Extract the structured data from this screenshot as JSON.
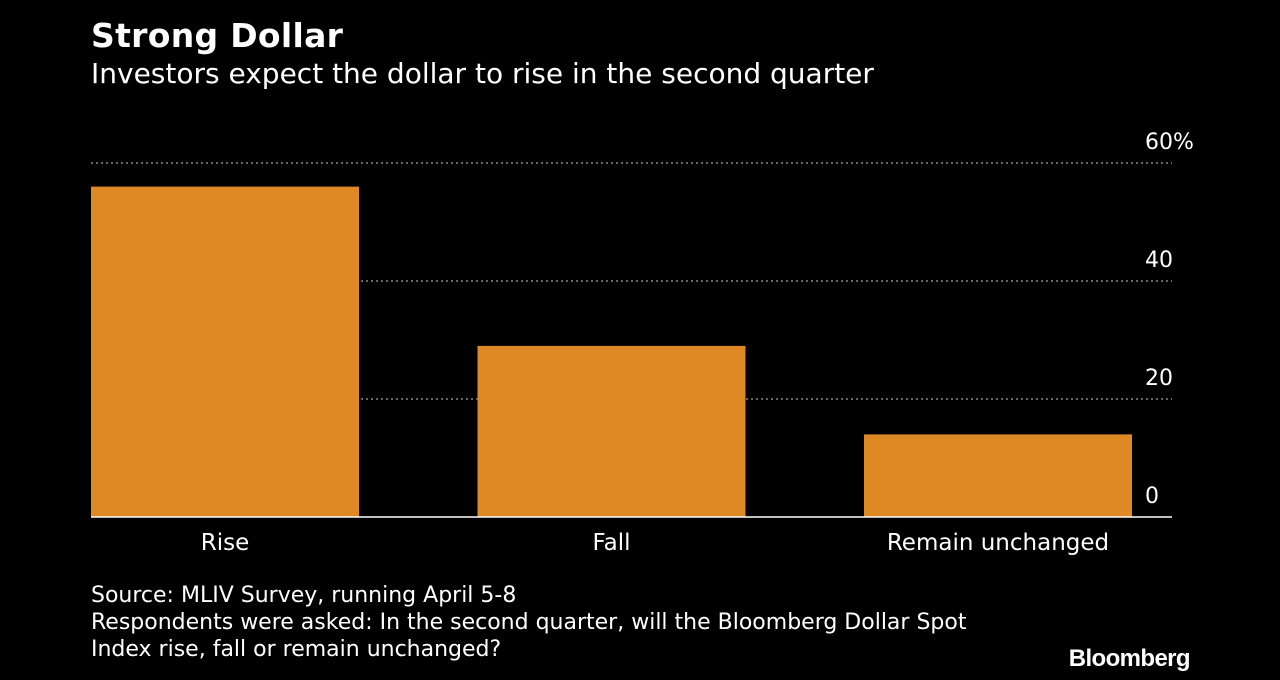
{
  "header": {
    "title": "Strong Dollar",
    "subtitle": "Investors expect the dollar to rise in the second quarter"
  },
  "chart_data": {
    "type": "bar",
    "categories": [
      "Rise",
      "Fall",
      "Remain unchanged"
    ],
    "values": [
      56,
      29,
      14
    ],
    "yticks": [
      "0",
      "20",
      "40",
      "60%"
    ],
    "ylim": [
      0,
      60
    ],
    "grid": true,
    "y_axis_position": "right",
    "bar_color": "#DE8923",
    "grid_color": "#8a8a8a",
    "background": "#000000"
  },
  "footer": {
    "source": "Source: MLIV Survey, running April 5-8",
    "note_line1": "Respondents were asked: In the second quarter, will the Bloomberg Dollar Spot",
    "note_line2": "Index rise, fall or remain unchanged?"
  },
  "brand": {
    "logo_text": "Bloomberg"
  }
}
